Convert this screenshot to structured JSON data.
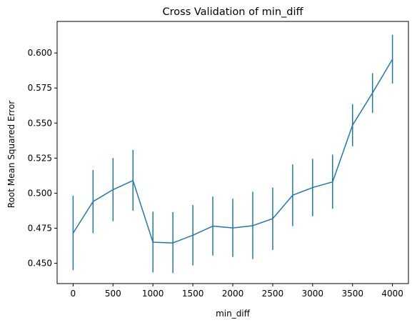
{
  "chart_data": {
    "type": "line",
    "title": "Cross Validation of min_diff",
    "xlabel": "min_diff",
    "ylabel": "Root Mean Squared Error",
    "xlim": [
      -200,
      4200
    ],
    "ylim": [
      0.4355,
      0.6225
    ],
    "x_ticks": [
      0,
      500,
      1000,
      1500,
      2000,
      2500,
      3000,
      3500,
      4000
    ],
    "x_tick_labels": [
      "0",
      "500",
      "1000",
      "1500",
      "2000",
      "2500",
      "3000",
      "3500",
      "4000"
    ],
    "y_ticks": [
      0.45,
      0.475,
      0.5,
      0.525,
      0.55,
      0.575,
      0.6
    ],
    "y_tick_labels": [
      "0.450",
      "0.475",
      "0.500",
      "0.525",
      "0.550",
      "0.575",
      "0.600"
    ],
    "grid": false,
    "colors": {
      "line": "#1f77b4",
      "errorbar": "#1f77b4",
      "axes": "#000000"
    },
    "series": [
      {
        "x": [
          0,
          250,
          500,
          750,
          1000,
          1250,
          1500,
          1750,
          2000,
          2250,
          2500,
          2750,
          3000,
          3250,
          3500,
          3750,
          4000
        ],
        "values": [
          0.4715,
          0.494,
          0.5025,
          0.509,
          0.465,
          0.4645,
          0.47,
          0.4765,
          0.4752,
          0.4768,
          0.4818,
          0.4985,
          0.504,
          0.508,
          0.5485,
          0.5715,
          0.5955
        ],
        "lower": [
          0.445,
          0.4715,
          0.48,
          0.4875,
          0.4435,
          0.443,
          0.4485,
          0.4555,
          0.4545,
          0.453,
          0.4595,
          0.4765,
          0.4835,
          0.4888,
          0.5335,
          0.5572,
          0.5782
        ],
        "upper": [
          0.4982,
          0.5165,
          0.525,
          0.5308,
          0.4868,
          0.4865,
          0.4915,
          0.4975,
          0.496,
          0.501,
          0.504,
          0.5205,
          0.5245,
          0.5275,
          0.5635,
          0.5855,
          0.613
        ]
      }
    ]
  }
}
